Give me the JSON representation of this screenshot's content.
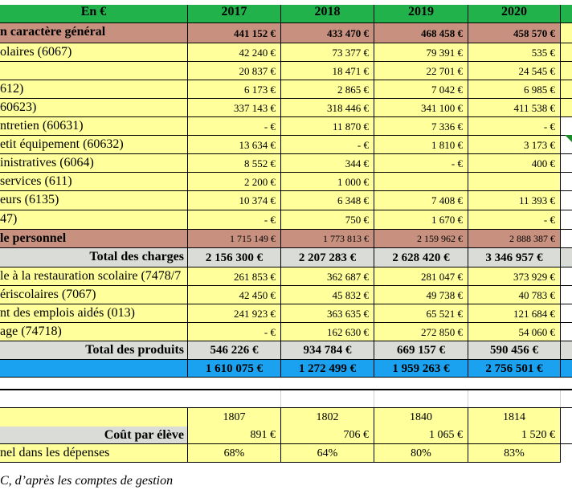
{
  "header": {
    "label": "En €",
    "years": [
      "2017",
      "2018",
      "2019",
      "2020"
    ]
  },
  "rows": [
    {
      "label": "n caractère général",
      "values": [
        "441 152 €",
        "433 470 €",
        "468 458 €",
        "458 570 €"
      ]
    },
    {
      "label": "olaires (6067)",
      "values": [
        "42 240 €",
        "73 377 €",
        "79 391 €",
        "535 €"
      ]
    },
    {
      "label": "",
      "values": [
        "20 837 €",
        "18 471 €",
        "22 701 €",
        "24 545 €"
      ]
    },
    {
      "label": "612)",
      "values": [
        "6 173 €",
        "2 865 €",
        "7 042 €",
        "6 985 €"
      ]
    },
    {
      "label": "60623)",
      "values": [
        "337 143 €",
        "318 446 €",
        "341 100 €",
        "411 538 €"
      ]
    },
    {
      "label": "ntretien (60631)",
      "values": [
        "- €",
        "11 870 €",
        "7 336 €",
        "- €"
      ]
    },
    {
      "label": "etit équipement (60632)",
      "values": [
        "13 634 €",
        "- €",
        "1 810 €",
        "3 173 €"
      ]
    },
    {
      "label": "inistratives (6064)",
      "values": [
        "8 552 €",
        "344 €",
        "- €",
        "400 €"
      ]
    },
    {
      "label": "services (611)",
      "values": [
        "2 200 €",
        "1 000 €",
        "",
        ""
      ]
    },
    {
      "label": "eurs (6135)",
      "values": [
        "10 374 €",
        "6 348 €",
        "7 408 €",
        "11 393 €"
      ]
    },
    {
      "label": "47)",
      "values": [
        "- €",
        "750 €",
        "1 670 €",
        "- €"
      ]
    },
    {
      "label": "le personnel",
      "values": [
        "1 715 149 €",
        "1 773 813 €",
        "2 159 962 €",
        "2 888 387 €"
      ]
    },
    {
      "label": "Total des charges",
      "values": [
        "2 156 300 €",
        "2 207 283 €",
        "2 628 420 €",
        "3 346 957 €"
      ]
    },
    {
      "label": "le à la restauration scolaire (7478/7",
      "values": [
        "261 853 €",
        "362 687 €",
        "281 047 €",
        "373 929 €"
      ]
    },
    {
      "label": "ériscolaires (7067)",
      "values": [
        "42 450 €",
        "45 832 €",
        "49 738 €",
        "40 783 €"
      ]
    },
    {
      "label": "nt des emplois aidés (013)",
      "values": [
        "241 923 €",
        "363 635 €",
        "65 521 €",
        "121 684 €"
      ]
    },
    {
      "label": "age (74718)",
      "values": [
        "- €",
        "162 630 €",
        "272 850 €",
        "54 060 €"
      ]
    },
    {
      "label": "Total des produits",
      "values": [
        "546 226 €",
        "934 784 €",
        "669 157 €",
        "590 456 €"
      ]
    },
    {
      "label": "",
      "values": [
        "1 610 075 €",
        "1 272 499 €",
        "1 959 263 €",
        "2 756 501 €"
      ]
    },
    {
      "label": "",
      "values": [
        "1807",
        "1802",
        "1840",
        "1814"
      ]
    },
    {
      "label": "Coût par élève",
      "values": [
        "891 €",
        "706 €",
        "1 065 €",
        "1 520 €"
      ]
    },
    {
      "label": "nel dans les dépenses",
      "values": [
        "68%",
        "64%",
        "80%",
        "83%"
      ]
    }
  ],
  "source": "C, d’après les comptes de gestion"
}
